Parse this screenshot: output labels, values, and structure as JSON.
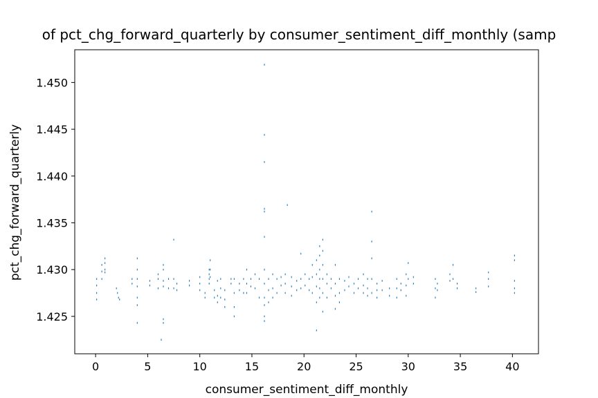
{
  "chart_data": {
    "type": "scatter",
    "title": "of pct_chg_forward_quarterly by consumer_sentiment_diff_monthly (samp",
    "xlabel": "consumer_sentiment_diff_monthly",
    "ylabel": "pct_chg_forward_quarterly",
    "xlim": [
      -2,
      42.5
    ],
    "ylim": [
      1.421,
      1.4535
    ],
    "x_ticks": [
      0,
      5,
      10,
      15,
      20,
      25,
      30,
      35,
      40
    ],
    "x_tick_labels": [
      "0",
      "5",
      "10",
      "15",
      "20",
      "25",
      "30",
      "35",
      "40"
    ],
    "y_ticks": [
      1.425,
      1.43,
      1.435,
      1.44,
      1.445,
      1.45
    ],
    "y_tick_labels": [
      "1.425",
      "1.430",
      "1.435",
      "1.440",
      "1.445",
      "1.450"
    ],
    "grid": false,
    "legend": "none",
    "marker_color": "#1f77b4",
    "points": [
      [
        0.1,
        1.4268
      ],
      [
        0.1,
        1.4275
      ],
      [
        0.1,
        1.4283
      ],
      [
        0.1,
        1.429
      ],
      [
        0.6,
        1.429
      ],
      [
        0.6,
        1.4298
      ],
      [
        0.6,
        1.4305
      ],
      [
        0.9,
        1.43
      ],
      [
        0.9,
        1.4307
      ],
      [
        0.9,
        1.4312
      ],
      [
        0.9,
        1.4297
      ],
      [
        2.0,
        1.428
      ],
      [
        2.1,
        1.4275
      ],
      [
        2.2,
        1.427
      ],
      [
        2.3,
        1.4268
      ],
      [
        3.5,
        1.429
      ],
      [
        3.5,
        1.4285
      ],
      [
        4.0,
        1.4312
      ],
      [
        4.0,
        1.43
      ],
      [
        4.0,
        1.429
      ],
      [
        4.0,
        1.4282
      ],
      [
        4.0,
        1.427
      ],
      [
        4.0,
        1.4262
      ],
      [
        4.0,
        1.4243
      ],
      [
        5.2,
        1.4288
      ],
      [
        5.2,
        1.4283
      ],
      [
        6.0,
        1.4295
      ],
      [
        6.0,
        1.429
      ],
      [
        6.0,
        1.428
      ],
      [
        6.3,
        1.4225
      ],
      [
        6.5,
        1.4305
      ],
      [
        6.5,
        1.43
      ],
      [
        6.5,
        1.4288
      ],
      [
        6.5,
        1.4282
      ],
      [
        6.5,
        1.4247
      ],
      [
        6.5,
        1.4243
      ],
      [
        7.0,
        1.429
      ],
      [
        7.0,
        1.428
      ],
      [
        7.5,
        1.4332
      ],
      [
        7.5,
        1.429
      ],
      [
        7.5,
        1.428
      ],
      [
        7.8,
        1.4285
      ],
      [
        7.8,
        1.4278
      ],
      [
        9.0,
        1.4288
      ],
      [
        9.0,
        1.4283
      ],
      [
        10.0,
        1.4292
      ],
      [
        10.0,
        1.4285
      ],
      [
        10.0,
        1.4278
      ],
      [
        10.5,
        1.4275
      ],
      [
        10.5,
        1.427
      ],
      [
        10.9,
        1.43
      ],
      [
        10.9,
        1.4295
      ],
      [
        10.9,
        1.429
      ],
      [
        10.9,
        1.4285
      ],
      [
        11.0,
        1.431
      ],
      [
        11.0,
        1.43
      ],
      [
        11.0,
        1.4292
      ],
      [
        11.4,
        1.4278
      ],
      [
        11.4,
        1.427
      ],
      [
        11.7,
        1.4288
      ],
      [
        11.7,
        1.4272
      ],
      [
        11.7,
        1.4265
      ],
      [
        12.0,
        1.429
      ],
      [
        12.0,
        1.428
      ],
      [
        12.0,
        1.427
      ],
      [
        12.4,
        1.4278
      ],
      [
        12.4,
        1.4268
      ],
      [
        12.4,
        1.426
      ],
      [
        13.0,
        1.429
      ],
      [
        13.0,
        1.4285
      ],
      [
        13.3,
        1.429
      ],
      [
        13.3,
        1.4275
      ],
      [
        13.3,
        1.426
      ],
      [
        13.3,
        1.425
      ],
      [
        13.8,
        1.4285
      ],
      [
        13.8,
        1.4278
      ],
      [
        14.2,
        1.429
      ],
      [
        14.2,
        1.4275
      ],
      [
        14.5,
        1.43
      ],
      [
        14.5,
        1.4285
      ],
      [
        14.5,
        1.4275
      ],
      [
        14.9,
        1.429
      ],
      [
        14.9,
        1.4282
      ],
      [
        15.3,
        1.4295
      ],
      [
        15.3,
        1.428
      ],
      [
        15.7,
        1.429
      ],
      [
        15.7,
        1.427
      ],
      [
        16.2,
        1.4519
      ],
      [
        16.2,
        1.4444
      ],
      [
        16.2,
        1.4415
      ],
      [
        16.2,
        1.4365
      ],
      [
        16.2,
        1.4362
      ],
      [
        16.2,
        1.4335
      ],
      [
        16.2,
        1.43
      ],
      [
        16.2,
        1.4285
      ],
      [
        16.2,
        1.427
      ],
      [
        16.2,
        1.4262
      ],
      [
        16.2,
        1.425
      ],
      [
        16.2,
        1.4245
      ],
      [
        16.6,
        1.429
      ],
      [
        16.6,
        1.4278
      ],
      [
        16.6,
        1.4265
      ],
      [
        17.0,
        1.4295
      ],
      [
        17.0,
        1.428
      ],
      [
        17.0,
        1.427
      ],
      [
        17.4,
        1.429
      ],
      [
        17.4,
        1.4275
      ],
      [
        17.8,
        1.4292
      ],
      [
        17.8,
        1.4283
      ],
      [
        18.4,
        1.4369
      ],
      [
        18.2,
        1.4295
      ],
      [
        18.2,
        1.4285
      ],
      [
        18.2,
        1.4275
      ],
      [
        18.8,
        1.4292
      ],
      [
        18.8,
        1.4282
      ],
      [
        18.8,
        1.4272
      ],
      [
        19.3,
        1.4288
      ],
      [
        19.3,
        1.4278
      ],
      [
        19.7,
        1.4317
      ],
      [
        19.7,
        1.429
      ],
      [
        19.7,
        1.428
      ],
      [
        20.1,
        1.4295
      ],
      [
        20.1,
        1.4283
      ],
      [
        20.5,
        1.429
      ],
      [
        20.5,
        1.4278
      ],
      [
        20.8,
        1.4305
      ],
      [
        20.8,
        1.4292
      ],
      [
        20.8,
        1.4275
      ],
      [
        21.2,
        1.431
      ],
      [
        21.2,
        1.4295
      ],
      [
        21.2,
        1.4282
      ],
      [
        21.2,
        1.4265
      ],
      [
        21.2,
        1.4235
      ],
      [
        21.5,
        1.4325
      ],
      [
        21.5,
        1.4315
      ],
      [
        21.5,
        1.43
      ],
      [
        21.5,
        1.429
      ],
      [
        21.5,
        1.428
      ],
      [
        21.5,
        1.427
      ],
      [
        21.8,
        1.4332
      ],
      [
        21.8,
        1.432
      ],
      [
        21.8,
        1.4305
      ],
      [
        21.8,
        1.429
      ],
      [
        21.8,
        1.4275
      ],
      [
        21.8,
        1.4255
      ],
      [
        22.2,
        1.4295
      ],
      [
        22.2,
        1.4285
      ],
      [
        22.2,
        1.427
      ],
      [
        22.6,
        1.429
      ],
      [
        22.6,
        1.428
      ],
      [
        23.0,
        1.4305
      ],
      [
        23.0,
        1.4285
      ],
      [
        23.0,
        1.4272
      ],
      [
        23.0,
        1.4258
      ],
      [
        23.4,
        1.429
      ],
      [
        23.4,
        1.4275
      ],
      [
        23.4,
        1.4265
      ],
      [
        23.9,
        1.4288
      ],
      [
        23.9,
        1.4278
      ],
      [
        24.3,
        1.4292
      ],
      [
        24.3,
        1.4282
      ],
      [
        24.8,
        1.4285
      ],
      [
        24.8,
        1.4275
      ],
      [
        25.2,
        1.429
      ],
      [
        25.2,
        1.428
      ],
      [
        25.7,
        1.4295
      ],
      [
        25.7,
        1.4283
      ],
      [
        25.7,
        1.4275
      ],
      [
        26.1,
        1.429
      ],
      [
        26.1,
        1.428
      ],
      [
        26.1,
        1.4272
      ],
      [
        26.5,
        1.4362
      ],
      [
        26.5,
        1.433
      ],
      [
        26.5,
        1.4312
      ],
      [
        26.5,
        1.429
      ],
      [
        26.5,
        1.4275
      ],
      [
        27.0,
        1.4285
      ],
      [
        27.0,
        1.4278
      ],
      [
        27.0,
        1.427
      ],
      [
        27.5,
        1.4288
      ],
      [
        27.5,
        1.4278
      ],
      [
        28.2,
        1.428
      ],
      [
        28.2,
        1.4272
      ],
      [
        28.9,
        1.429
      ],
      [
        28.9,
        1.428
      ],
      [
        28.9,
        1.427
      ],
      [
        29.3,
        1.4285
      ],
      [
        29.3,
        1.4278
      ],
      [
        29.8,
        1.4295
      ],
      [
        29.8,
        1.4283
      ],
      [
        29.8,
        1.4272
      ],
      [
        30.0,
        1.4307
      ],
      [
        30.0,
        1.429
      ],
      [
        30.5,
        1.4292
      ],
      [
        30.5,
        1.4285
      ],
      [
        32.6,
        1.429
      ],
      [
        32.6,
        1.428
      ],
      [
        32.6,
        1.427
      ],
      [
        32.8,
        1.4285
      ],
      [
        32.8,
        1.4278
      ],
      [
        34.0,
        1.4295
      ],
      [
        34.0,
        1.4288
      ],
      [
        34.3,
        1.4305
      ],
      [
        34.3,
        1.429
      ],
      [
        34.7,
        1.4285
      ],
      [
        34.7,
        1.428
      ],
      [
        36.5,
        1.428
      ],
      [
        36.5,
        1.4276
      ],
      [
        37.7,
        1.4297
      ],
      [
        37.7,
        1.429
      ],
      [
        37.7,
        1.4282
      ],
      [
        40.2,
        1.4315
      ],
      [
        40.2,
        1.431
      ],
      [
        40.2,
        1.4288
      ],
      [
        40.2,
        1.428
      ],
      [
        40.2,
        1.4275
      ]
    ]
  }
}
